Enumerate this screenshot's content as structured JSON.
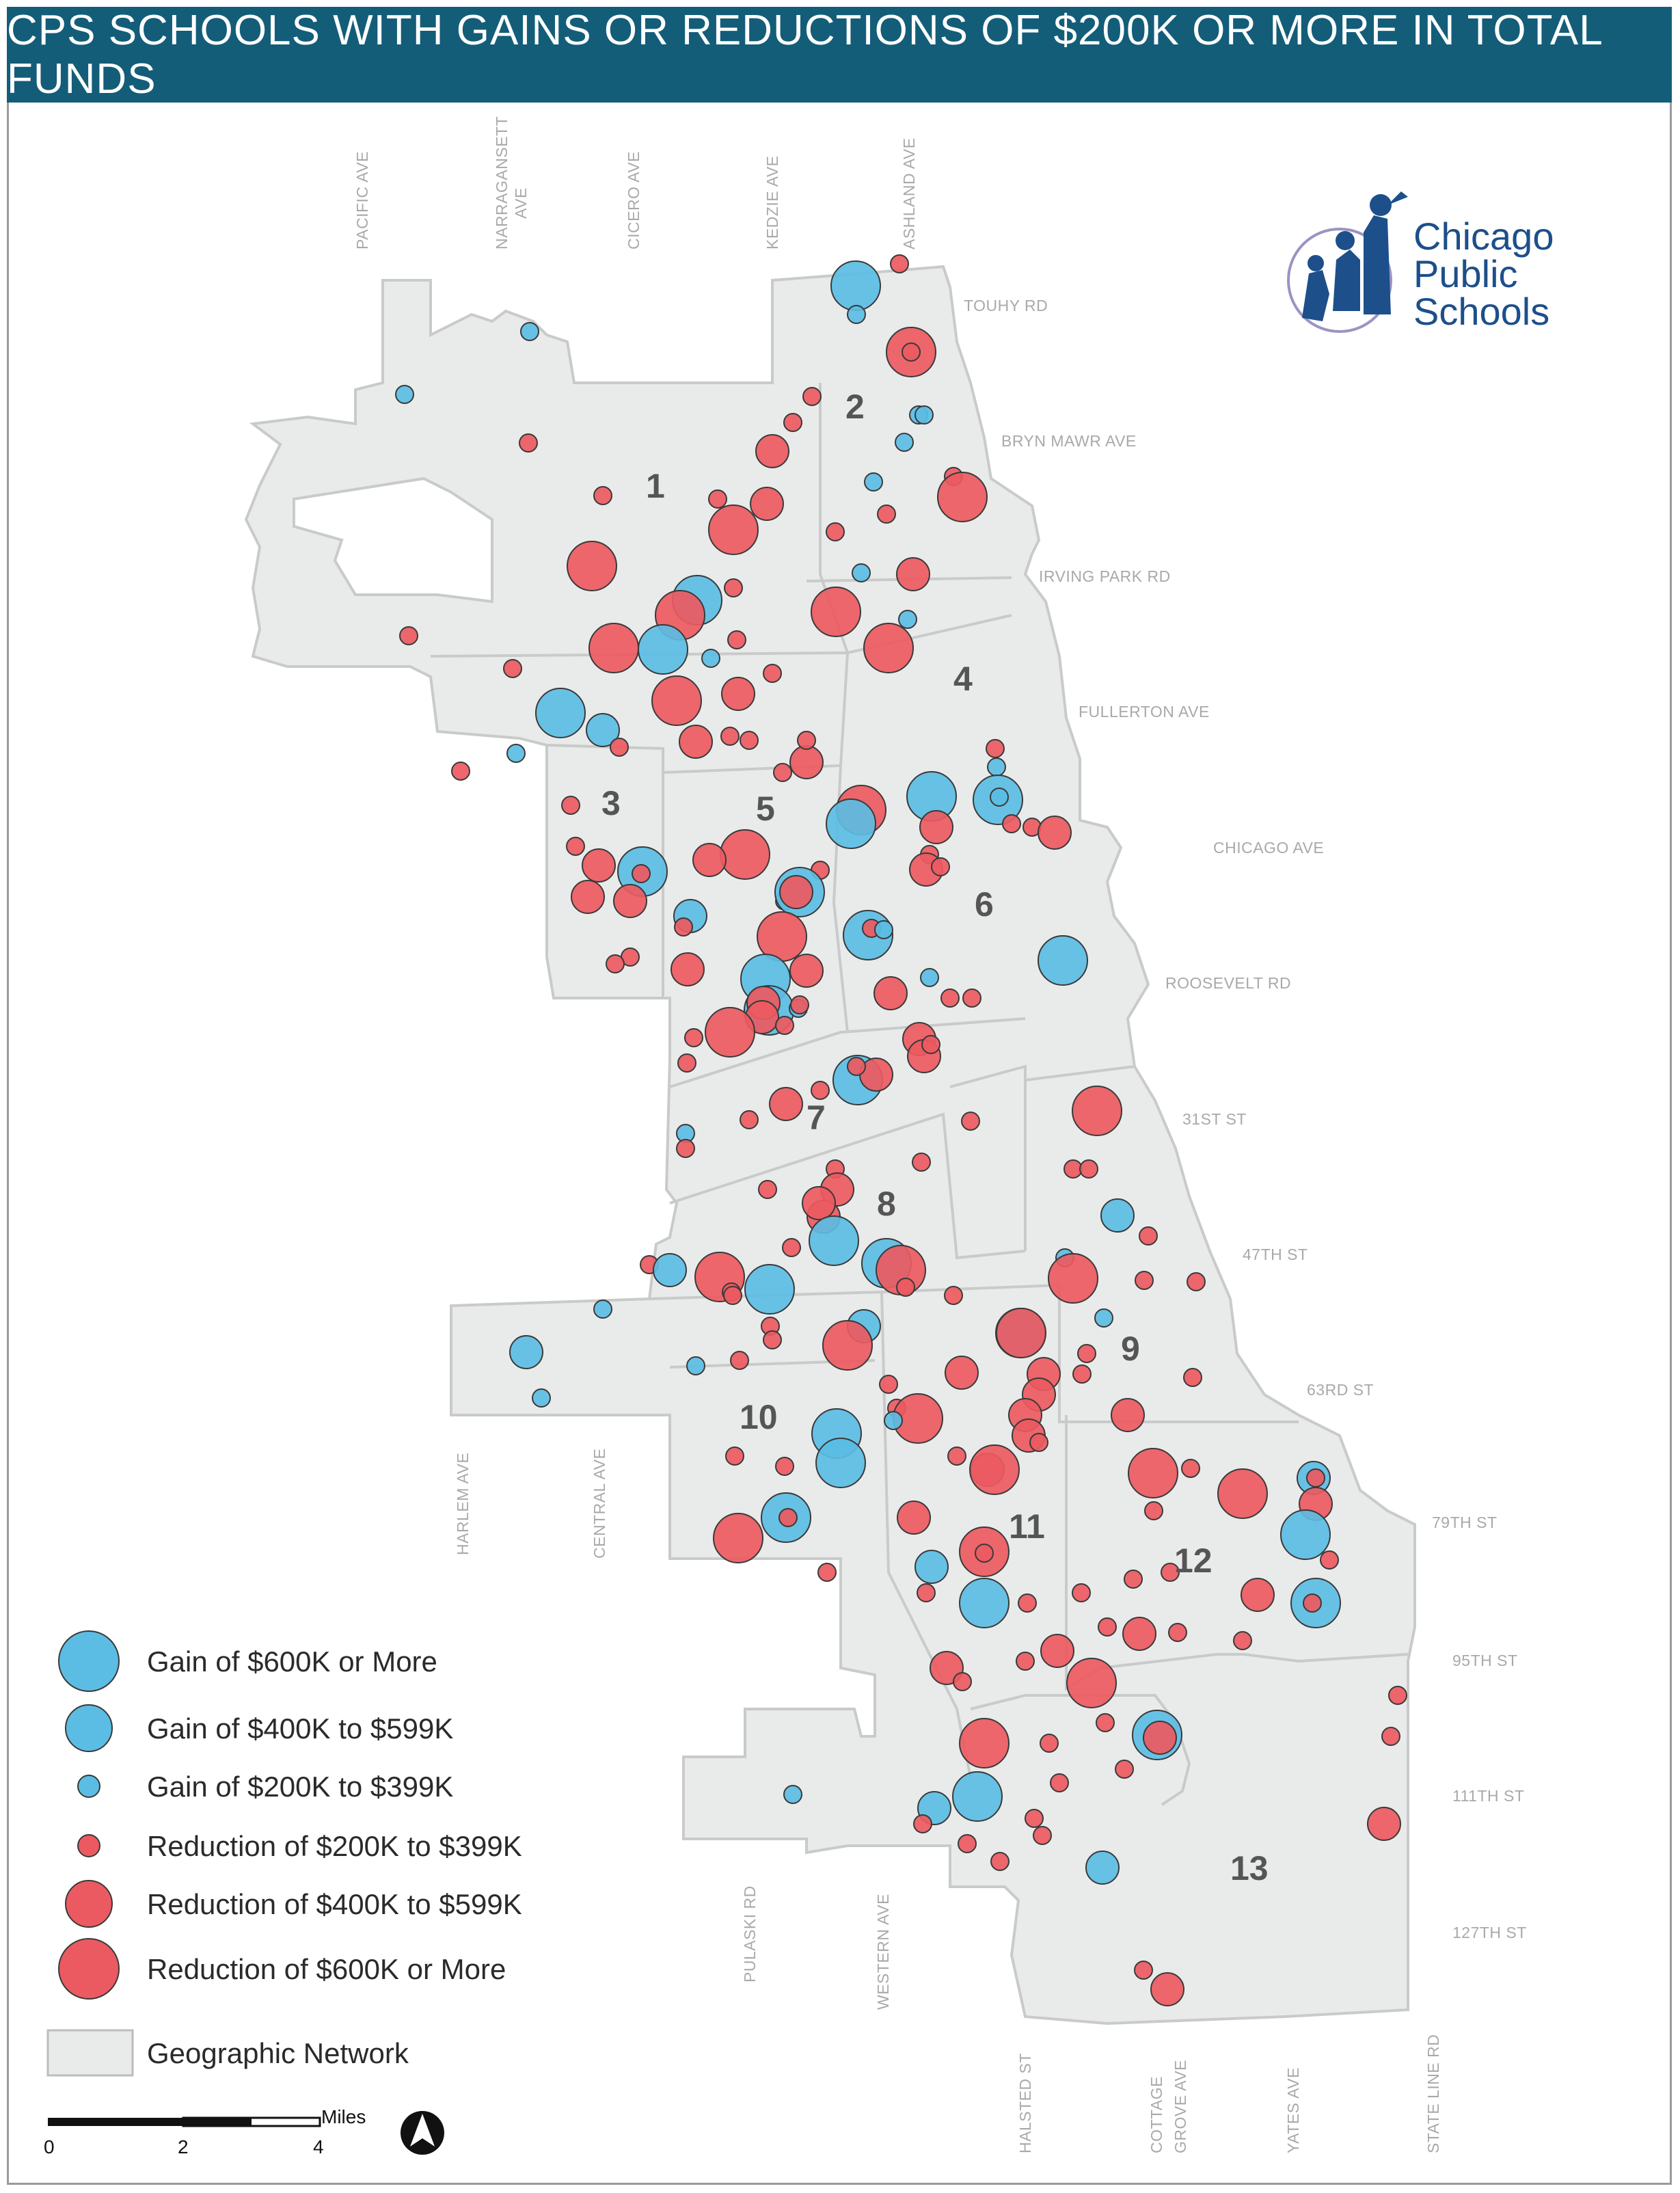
{
  "title": "CPS SCHOOLS WITH GAINS OR REDUCTIONS OF $200K OR MORE IN TOTAL FUNDS",
  "colors": {
    "gain": "#5bbde4",
    "reduction": "#ec5a61",
    "network_fill": "#e9eaea",
    "title_bg": "#135d79"
  },
  "logo": {
    "line1": "Chicago",
    "line2": "Public",
    "line3": "Schools"
  },
  "streets_ns": [
    "PACIFIC AVE",
    "NARRAGANSETT",
    "AVE",
    "CICERO AVE",
    "KEDZIE AVE",
    "ASHLAND AVE"
  ],
  "streets_ew": [
    "TOUHY RD",
    "BRYN MAWR AVE",
    "IRVING PARK RD",
    "FULLERTON AVE",
    "CHICAGO AVE",
    "ROOSEVELT RD",
    "31ST ST",
    "47TH ST",
    "63RD ST",
    "79TH ST",
    "95TH ST",
    "111TH ST",
    "127TH ST"
  ],
  "streets_sw": [
    "HARLEM AVE",
    "CENTRAL AVE",
    "PULASKI RD",
    "WESTERN AVE"
  ],
  "streets_bottom": [
    "HALSTED ST",
    "COTTAGE",
    "GROVE AVE",
    "YATES AVE",
    "STATE LINE RD"
  ],
  "networks": [
    "1",
    "2",
    "3",
    "4",
    "5",
    "6",
    "7",
    "8",
    "9",
    "10",
    "11",
    "12",
    "13"
  ],
  "legend": [
    {
      "label": "Gain of $600K or More",
      "type": "gain",
      "size": "large"
    },
    {
      "label": "Gain of $400K to $599K",
      "type": "gain",
      "size": "medium"
    },
    {
      "label": "Gain of $200K to $399K",
      "type": "gain",
      "size": "small"
    },
    {
      "label": "Reduction of $200K to $399K",
      "type": "reduction",
      "size": "small"
    },
    {
      "label": "Reduction of $400K to $599K",
      "type": "reduction",
      "size": "medium"
    },
    {
      "label": "Reduction of $600K or More",
      "type": "reduction",
      "size": "large"
    }
  ],
  "network_legend": "Geographic Network",
  "scale": {
    "unit": "Miles",
    "ticks": [
      "0",
      "2",
      "4"
    ]
  }
}
